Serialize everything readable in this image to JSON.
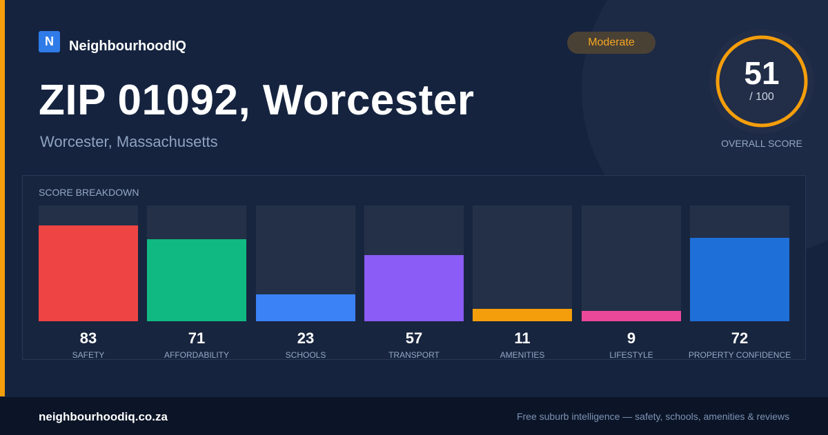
{
  "brand": {
    "logo_letter": "N",
    "name": "NeighbourhoodIQ"
  },
  "badge": {
    "label": "Moderate",
    "color": "#f5a623"
  },
  "header": {
    "title": "ZIP 01092, Worcester",
    "subtitle": "Worcester, Massachusetts"
  },
  "overall": {
    "score": "51",
    "max_label": "/ 100",
    "label": "OVERALL SCORE",
    "score_value": 51,
    "max_value": 100,
    "ring_color": "#f59e0b"
  },
  "breakdown": {
    "title": "SCORE BREAKDOWN"
  },
  "chart_data": {
    "type": "bar",
    "title": "SCORE BREAKDOWN",
    "categories": [
      "SAFETY",
      "AFFORDABILITY",
      "SCHOOLS",
      "TRANSPORT",
      "AMENITIES",
      "LIFESTYLE",
      "PROPERTY CONFIDENCE"
    ],
    "values": [
      83,
      71,
      23,
      57,
      11,
      9,
      72
    ],
    "colors": [
      "#ef4444",
      "#10b981",
      "#3b82f6",
      "#8b5cf6",
      "#f59e0b",
      "#ec4899",
      "#1f6fd8"
    ],
    "ylim": [
      0,
      100
    ],
    "grid": false
  },
  "footer": {
    "url": "neighbourhoodiq.co.za",
    "tagline": "Free suburb intelligence — safety, schools, amenities & reviews"
  }
}
